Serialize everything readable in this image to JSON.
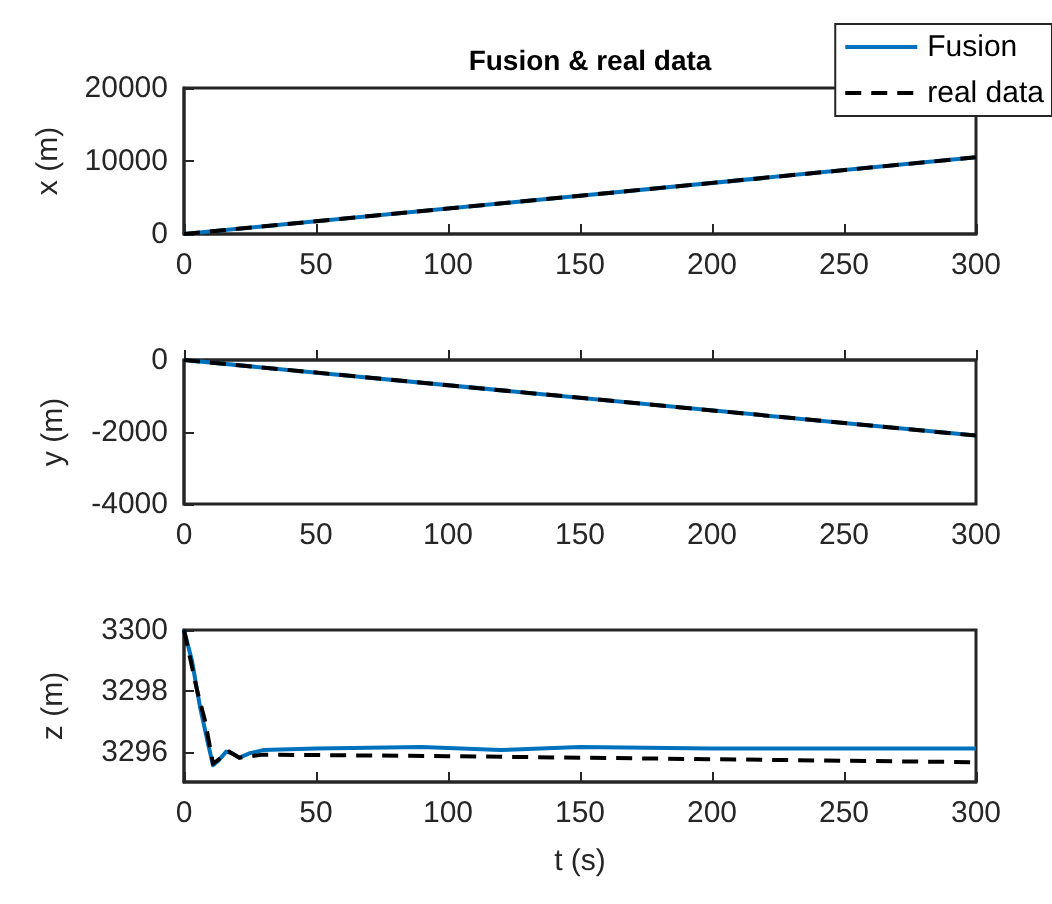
{
  "chart_data": [
    {
      "type": "line",
      "title": "Fusion & real data",
      "ylabel": "x (m)",
      "xlim": [
        0,
        300
      ],
      "xticks": [
        0,
        50,
        100,
        150,
        200,
        250,
        300
      ],
      "ylim": [
        0,
        20000
      ],
      "yticks": [
        0,
        10000,
        20000
      ],
      "grid": false,
      "legend": "top right",
      "marker": "none",
      "series": [
        {
          "name": "Fusion",
          "color": "#0072bd",
          "line_style": "solid",
          "x": [
            0,
            300
          ],
          "values": [
            0,
            10500
          ]
        },
        {
          "name": "real data",
          "color": "#000000",
          "line_style": "dashed",
          "x": [
            0,
            300
          ],
          "values": [
            0,
            10500
          ]
        }
      ]
    },
    {
      "type": "line",
      "ylabel": "y (m)",
      "xlim": [
        0,
        300
      ],
      "xticks": [
        0,
        50,
        100,
        150,
        200,
        250,
        300
      ],
      "ylim": [
        -4000,
        0
      ],
      "yticks": [
        -4000,
        -2000,
        0
      ],
      "grid": false,
      "legend": false,
      "marker": "none",
      "series": [
        {
          "color": "#0072bd",
          "line_style": "solid",
          "x": [
            0,
            300
          ],
          "values": [
            0,
            -2100
          ]
        },
        {
          "color": "#000000",
          "line_style": "dashed",
          "x": [
            0,
            300
          ],
          "values": [
            0,
            -2100
          ]
        }
      ]
    },
    {
      "type": "line",
      "xlabel": "t (s)",
      "ylabel": "z (m)",
      "xlim": [
        0,
        300
      ],
      "xticks": [
        0,
        50,
        100,
        150,
        200,
        250,
        300
      ],
      "ylim": [
        3295,
        3300
      ],
      "yticks": [
        3296,
        3298,
        3300
      ],
      "grid": false,
      "legend": false,
      "marker": "none",
      "series": [
        {
          "color": "#0072bd",
          "line_style": "solid",
          "x": [
            0,
            3,
            6,
            9,
            11,
            13,
            16,
            18,
            21,
            25,
            30,
            50,
            90,
            120,
            150,
            200,
            250,
            300
          ],
          "values": [
            3300,
            3299,
            3297.5,
            3296.3,
            3295.55,
            3295.7,
            3296,
            3295.95,
            3295.8,
            3295.95,
            3296.05,
            3296.1,
            3296.15,
            3296.05,
            3296.15,
            3296.1,
            3296.1,
            3296.1
          ]
        },
        {
          "color": "#000000",
          "line_style": "dashed",
          "x": [
            0,
            5,
            8,
            11,
            14,
            17,
            21,
            30,
            100,
            200,
            300
          ],
          "values": [
            3300,
            3298,
            3297,
            3295.6,
            3295.8,
            3296,
            3295.8,
            3295.9,
            3295.85,
            3295.75,
            3295.65
          ]
        }
      ]
    }
  ]
}
